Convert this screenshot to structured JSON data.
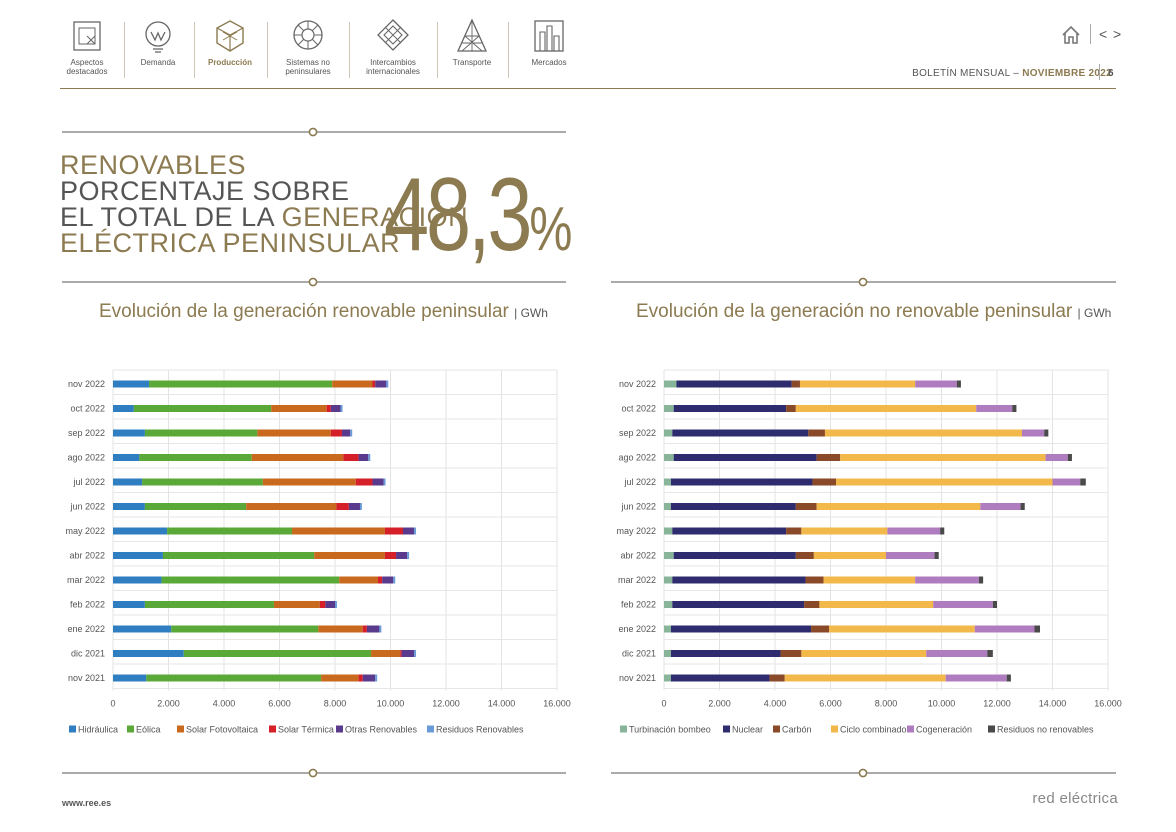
{
  "nav": {
    "items": [
      {
        "label1": "Aspectos",
        "label2": "destacados"
      },
      {
        "label1": "Demanda",
        "label2": ""
      },
      {
        "label1": "Producción",
        "label2": ""
      },
      {
        "label1": "Sistemas no",
        "label2": "peninsulares"
      },
      {
        "label1": "Intercambios",
        "label2": "internacionales"
      },
      {
        "label1": "Transporte",
        "label2": ""
      },
      {
        "label1": "Mercados",
        "label2": ""
      }
    ],
    "active_index": 2
  },
  "header": {
    "bulletin_label": "BOLETÍN MENSUAL",
    "bulletin_sep": "–",
    "bulletin_month": "NOVIEMBRE 2022",
    "page_number": "6",
    "prev_label": "<",
    "next_label": ">"
  },
  "headline": {
    "line1": "RENOVABLES",
    "line2": "PORCENTAJE SOBRE",
    "line3a": "EL TOTAL DE LA ",
    "line3b": "GENERACIÓN",
    "line4": "ELÉCTRICA PENINSULAR",
    "value": "48,3",
    "unit": "%"
  },
  "colors": {
    "gold": "#8c7a50",
    "hidraulica": "#2f7ec2",
    "eolica": "#5aa837",
    "solar_fv": "#c8691e",
    "solar_termica": "#d5202a",
    "otras_renovables": "#5a3a8c",
    "residuos_renovables": "#6a9bd8",
    "turbinacion": "#88b49a",
    "nuclear": "#2e2c6e",
    "carbon": "#8a4a2a",
    "ciclo": "#f2b84a",
    "cogeneracion": "#b07cc0",
    "residuos_no_renovables": "#4a4a4a"
  },
  "chart_data": [
    {
      "type": "bar",
      "orientation": "horizontal",
      "stacked": true,
      "title": "Evolución de la generación renovable peninsular",
      "unit": "GWh",
      "categories": [
        "nov 2022",
        "oct 2022",
        "sep 2022",
        "ago 2022",
        "jul 2022",
        "jun 2022",
        "may 2022",
        "abr 2022",
        "mar 2022",
        "feb 2022",
        "ene 2022",
        "dic 2021",
        "nov 2021"
      ],
      "xlim": [
        0,
        16000
      ],
      "xticks": [
        "0",
        "2.000",
        "4.000",
        "6.000",
        "8.000",
        "10.000",
        "12.000",
        "14.000",
        "16.000"
      ],
      "tick_values": [
        0,
        2000,
        4000,
        6000,
        8000,
        10000,
        12000,
        14000,
        16000
      ],
      "grid": true,
      "legend_position": "bottom",
      "series": [
        {
          "name": "Hidráulica",
          "color": "#2f7ec2",
          "values": [
            1300,
            750,
            1150,
            950,
            1050,
            1150,
            1950,
            1800,
            1750,
            1150,
            2100,
            2550,
            1200
          ]
        },
        {
          "name": "Eólica",
          "color": "#5aa837",
          "values": [
            6600,
            4950,
            4050,
            4050,
            4350,
            3650,
            4500,
            5450,
            6400,
            4650,
            5300,
            6750,
            6300
          ]
        },
        {
          "name": "Solar Fotovoltaica",
          "color": "#c8691e",
          "values": [
            1450,
            2000,
            2650,
            3300,
            3350,
            3250,
            3350,
            2550,
            1400,
            1650,
            1600,
            1050,
            1350
          ]
        },
        {
          "name": "Solar Térmica",
          "color": "#d5202a",
          "values": [
            100,
            150,
            400,
            550,
            600,
            450,
            650,
            400,
            150,
            200,
            150,
            50,
            150
          ]
        },
        {
          "name": "Otras Renovables",
          "color": "#5a3a8c",
          "values": [
            400,
            350,
            300,
            350,
            400,
            400,
            400,
            400,
            400,
            350,
            450,
            450,
            450
          ]
        },
        {
          "name": "Residuos Renovables",
          "color": "#6a9bd8",
          "values": [
            70,
            70,
            70,
            70,
            70,
            70,
            70,
            70,
            70,
            70,
            70,
            70,
            70
          ]
        }
      ]
    },
    {
      "type": "bar",
      "orientation": "horizontal",
      "stacked": true,
      "title": "Evolución de la generación no renovable peninsular",
      "unit": "GWh",
      "categories": [
        "nov 2022",
        "oct 2022",
        "sep 2022",
        "ago 2022",
        "jul 2022",
        "jun 2022",
        "may 2022",
        "abr 2022",
        "mar 2022",
        "feb 2022",
        "ene 2022",
        "dic 2021",
        "nov 2021"
      ],
      "xlim": [
        0,
        16000
      ],
      "xticks": [
        "0",
        "2.000",
        "4.000",
        "6.000",
        "8.000",
        "10.000",
        "12.000",
        "14.000",
        "16.000"
      ],
      "tick_values": [
        0,
        2000,
        4000,
        6000,
        8000,
        10000,
        12000,
        14000,
        16000
      ],
      "grid": true,
      "legend_position": "bottom",
      "series": [
        {
          "name": "Turbinación bombeo",
          "color": "#88b49a",
          "values": [
            450,
            350,
            300,
            350,
            250,
            250,
            300,
            350,
            300,
            300,
            250,
            250,
            250
          ]
        },
        {
          "name": "Nuclear",
          "color": "#2e2c6e",
          "values": [
            4150,
            4050,
            4900,
            5150,
            5100,
            4500,
            4100,
            4400,
            4800,
            4750,
            5050,
            3950,
            3550
          ]
        },
        {
          "name": "Carbón",
          "color": "#8a4a2a",
          "values": [
            300,
            350,
            600,
            850,
            850,
            750,
            550,
            650,
            650,
            550,
            650,
            750,
            550
          ]
        },
        {
          "name": "Ciclo combinado",
          "color": "#f2b84a",
          "values": [
            4150,
            6500,
            7100,
            7400,
            7800,
            5900,
            3100,
            2600,
            3300,
            4100,
            5250,
            4500,
            5800
          ]
        },
        {
          "name": "Cogeneración",
          "color": "#b07cc0",
          "values": [
            1500,
            1300,
            800,
            800,
            1000,
            1450,
            1900,
            1750,
            2300,
            2150,
            2150,
            2200,
            2200
          ]
        },
        {
          "name": "Residuos no renovables",
          "color": "#4a4a4a",
          "values": [
            150,
            150,
            150,
            150,
            200,
            150,
            150,
            150,
            150,
            150,
            200,
            200,
            150
          ]
        }
      ]
    }
  ],
  "footer": {
    "url": "www.ree.es",
    "brand": "red eléctrica"
  }
}
